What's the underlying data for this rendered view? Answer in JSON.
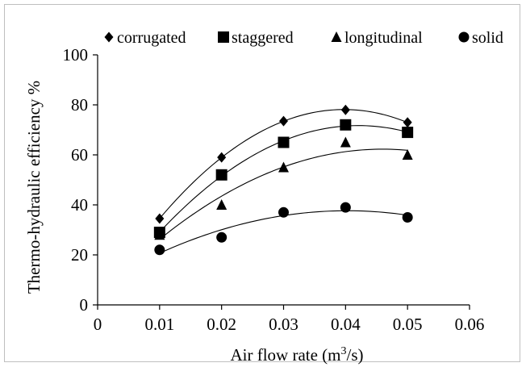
{
  "chart_data": {
    "type": "scatter",
    "xlabel_main": "Air flow rate (m",
    "xlabel_sup": "3",
    "xlabel_end": "/s)",
    "ylabel": "Thermo-hydraulic efficiency %",
    "xlim": [
      0,
      0.06
    ],
    "ylim": [
      0,
      100
    ],
    "xticks": [
      "0",
      "0.01",
      "0.02",
      "0.03",
      "0.04",
      "0.05",
      "0.06"
    ],
    "yticks": [
      "0",
      "20",
      "40",
      "60",
      "80",
      "100"
    ],
    "grid": false,
    "legend_position": "top",
    "series": [
      {
        "name": "corrugated",
        "marker": "diamond",
        "x": [
          0.01,
          0.02,
          0.03,
          0.04,
          0.05
        ],
        "y": [
          34.5,
          59,
          73.5,
          78,
          73
        ],
        "trendline": "polynomial-2"
      },
      {
        "name": "staggered",
        "marker": "square",
        "x": [
          0.01,
          0.02,
          0.03,
          0.04,
          0.05
        ],
        "y": [
          29,
          52,
          65,
          72,
          69
        ],
        "trendline": "polynomial-2"
      },
      {
        "name": "longitudinal",
        "marker": "triangle",
        "x": [
          0.01,
          0.02,
          0.03,
          0.04,
          0.05
        ],
        "y": [
          28,
          40,
          55,
          65,
          60
        ],
        "trendline": "polynomial-2"
      },
      {
        "name": "solid",
        "marker": "circle",
        "x": [
          0.01,
          0.02,
          0.03,
          0.04,
          0.05
        ],
        "y": [
          22,
          27,
          37,
          39,
          35
        ],
        "trendline": "polynomial-2"
      }
    ],
    "colors": {
      "marker": "#000000",
      "axis": "#000000",
      "border": "#bfbfbf"
    }
  }
}
